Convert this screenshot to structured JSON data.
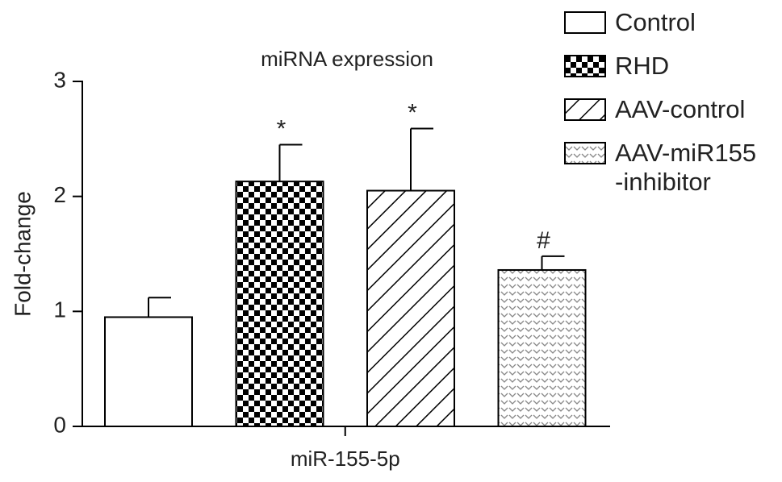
{
  "chart_data": {
    "type": "bar",
    "title": "miRNA expression",
    "y_label": "Fold-change",
    "categories": [
      "miR-155-5p"
    ],
    "ylim": [
      0,
      3
    ],
    "yticks": [
      0,
      1,
      2,
      3
    ],
    "series": [
      {
        "name": "Control",
        "pattern": "none",
        "color": "#ffffff",
        "values": [
          0.95
        ],
        "errors": [
          0.17
        ]
      },
      {
        "name": "RHD",
        "pattern": "checker",
        "color": "#000000",
        "values": [
          2.13
        ],
        "errors": [
          0.32
        ],
        "annotation": "*"
      },
      {
        "name": "AAV-control",
        "pattern": "diagonal",
        "color": "#000000",
        "values": [
          2.05
        ],
        "errors": [
          0.54
        ],
        "annotation": "*"
      },
      {
        "name": "AAV-miR155\n-inhibitor",
        "pattern": "wave",
        "color": "#888888",
        "values": [
          1.36
        ],
        "errors": [
          0.12
        ],
        "annotation": "#"
      }
    ],
    "legend": "top-right"
  }
}
